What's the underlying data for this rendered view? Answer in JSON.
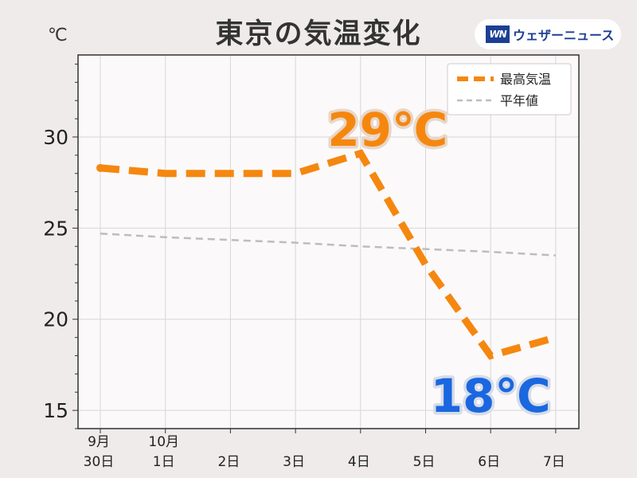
{
  "page": {
    "title": "東京の気温変化",
    "unit": "℃",
    "brand": {
      "mark": "WN",
      "name": "ウェザーニュース"
    }
  },
  "chart_data": {
    "type": "line",
    "title": "東京の気温変化",
    "ylabel": "℃",
    "xlabel": "",
    "categories": [
      [
        "9月",
        "30日"
      ],
      [
        "10月",
        "1日"
      ],
      [
        "2日"
      ],
      [
        "3日"
      ],
      [
        "4日"
      ],
      [
        "5日"
      ],
      [
        "6日"
      ],
      [
        "7日"
      ]
    ],
    "ylim": [
      14,
      34.5
    ],
    "yticks": [
      15,
      20,
      25,
      30
    ],
    "grid": true,
    "legend_position": "top-right",
    "series": [
      {
        "name": "最高気温",
        "values": [
          28.3,
          28.0,
          28.0,
          28.0,
          29.1,
          23.0,
          18.0,
          19.0
        ],
        "color": "#f5870f",
        "style": "dashed-thick"
      },
      {
        "name": "平年値",
        "values": [
          24.7,
          24.5,
          24.35,
          24.2,
          24.0,
          23.85,
          23.7,
          23.5
        ],
        "color": "#bdbdbd",
        "style": "dashed-thin"
      }
    ],
    "annotations": [
      {
        "text": "29℃",
        "x_index": 4,
        "color": "#f5870f"
      },
      {
        "text": "18℃",
        "x_index": 6,
        "color": "#1a67e0"
      }
    ]
  }
}
